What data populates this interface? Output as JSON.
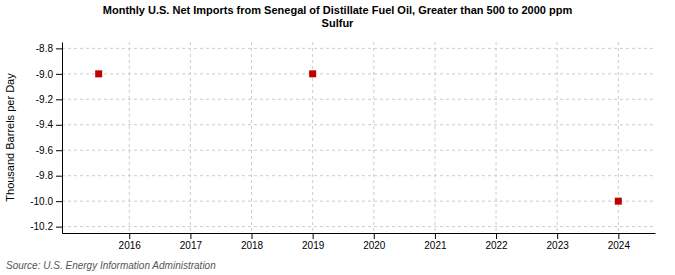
{
  "chart_data": {
    "type": "scatter",
    "title": "Monthly U.S. Net Imports from Senegal of Distillate Fuel Oil, Greater than 500 to 2000 ppm\nSulfur",
    "y_label": "Thousand Barrels per Day",
    "source": "Source: U.S. Energy Information Administration",
    "x": [
      2015.5,
      2019.0,
      2024.0
    ],
    "values": [
      -9.0,
      -9.0,
      -10.0
    ],
    "color": "#c00000",
    "marker": "square",
    "xlim": [
      2014.9,
      2024.6
    ],
    "ylim": [
      -10.25,
      -8.75
    ],
    "xticks": [
      2016,
      2017,
      2018,
      2019,
      2020,
      2021,
      2022,
      2023,
      2024
    ],
    "yticks": [
      -10.2,
      {
        "value": -10.0,
        "label": "-10.0"
      },
      -9.8,
      -9.6,
      -9.4,
      -9.2,
      {
        "value": -9.0,
        "label": "-9.0"
      },
      -8.8
    ],
    "grid": true
  }
}
